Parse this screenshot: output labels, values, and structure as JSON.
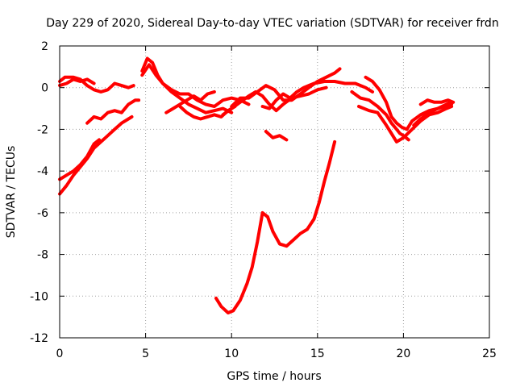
{
  "chart_data": {
    "type": "line",
    "title": "Day 229 of 2020, Sidereal Day-to-day VTEC variation (SDTVAR) for receiver frdn",
    "xlabel": "GPS time / hours",
    "ylabel": "SDTVAR / TECUs",
    "xlim": [
      0,
      25
    ],
    "ylim": [
      -12,
      2
    ],
    "xticks": [
      0,
      5,
      10,
      15,
      20,
      25
    ],
    "yticks": [
      -12,
      -10,
      -8,
      -6,
      -4,
      -2,
      0,
      2
    ],
    "xtick_labels": [
      "0",
      "5",
      "10",
      "15",
      "20",
      "25"
    ],
    "ytick_labels": [
      "-12",
      "-10",
      "-8",
      "-6",
      "-4",
      "-2",
      "0",
      "2"
    ],
    "grid": true,
    "color": "#ff0000",
    "series": [
      {
        "name": "satellite-track-1",
        "points": [
          [
            0.0,
            0.3
          ],
          [
            0.3,
            0.5
          ],
          [
            0.8,
            0.5
          ],
          [
            1.2,
            0.4
          ],
          [
            1.6,
            0.1
          ],
          [
            2.0,
            -0.1
          ],
          [
            2.4,
            -0.2
          ],
          [
            2.8,
            -0.1
          ],
          [
            3.2,
            0.2
          ],
          [
            3.6,
            0.1
          ],
          [
            4.0,
            0.0
          ],
          [
            4.3,
            0.1
          ]
        ]
      },
      {
        "name": "satellite-track-2",
        "points": [
          [
            0.0,
            0.1
          ],
          [
            0.4,
            0.2
          ],
          [
            0.8,
            0.4
          ],
          [
            1.2,
            0.3
          ],
          [
            1.6,
            0.4
          ],
          [
            2.0,
            0.2
          ]
        ]
      },
      {
        "name": "satellite-track-3",
        "points": [
          [
            1.6,
            -1.7
          ],
          [
            2.0,
            -1.4
          ],
          [
            2.4,
            -1.5
          ],
          [
            2.8,
            -1.2
          ],
          [
            3.2,
            -1.1
          ],
          [
            3.6,
            -1.2
          ],
          [
            4.0,
            -0.8
          ],
          [
            4.4,
            -0.6
          ],
          [
            4.6,
            -0.6
          ]
        ]
      },
      {
        "name": "satellite-track-4",
        "points": [
          [
            0.0,
            -5.1
          ],
          [
            0.4,
            -4.7
          ],
          [
            0.8,
            -4.2
          ],
          [
            1.2,
            -3.8
          ],
          [
            1.6,
            -3.4
          ],
          [
            2.0,
            -2.9
          ],
          [
            2.4,
            -2.6
          ],
          [
            2.8,
            -2.3
          ],
          [
            3.2,
            -2.0
          ],
          [
            3.6,
            -1.7
          ],
          [
            4.0,
            -1.5
          ],
          [
            4.2,
            -1.4
          ]
        ]
      },
      {
        "name": "satellite-track-5",
        "points": [
          [
            0.0,
            -4.4
          ],
          [
            0.4,
            -4.2
          ],
          [
            0.8,
            -4.0
          ],
          [
            1.2,
            -3.7
          ],
          [
            1.6,
            -3.3
          ],
          [
            2.0,
            -2.7
          ],
          [
            2.3,
            -2.5
          ]
        ]
      },
      {
        "name": "satellite-track-6",
        "points": [
          [
            4.8,
            0.8
          ],
          [
            5.1,
            1.4
          ],
          [
            5.4,
            1.2
          ],
          [
            5.7,
            0.6
          ],
          [
            6.0,
            0.2
          ],
          [
            6.5,
            -0.1
          ],
          [
            7.0,
            -0.3
          ],
          [
            7.5,
            -0.3
          ],
          [
            8.0,
            -0.6
          ],
          [
            8.5,
            -0.8
          ],
          [
            9.0,
            -0.9
          ],
          [
            9.5,
            -0.6
          ],
          [
            10.0,
            -0.5
          ],
          [
            10.5,
            -0.6
          ],
          [
            11.0,
            -0.8
          ]
        ]
      },
      {
        "name": "satellite-track-7",
        "points": [
          [
            4.8,
            0.6
          ],
          [
            5.2,
            1.1
          ],
          [
            5.6,
            0.6
          ],
          [
            6.0,
            0.2
          ],
          [
            6.5,
            -0.2
          ],
          [
            7.0,
            -0.5
          ],
          [
            7.5,
            -0.8
          ],
          [
            8.0,
            -1.0
          ],
          [
            8.5,
            -1.2
          ],
          [
            9.0,
            -1.1
          ],
          [
            9.5,
            -1.0
          ],
          [
            10.0,
            -1.2
          ]
        ]
      },
      {
        "name": "satellite-track-8",
        "points": [
          [
            6.2,
            -1.2
          ],
          [
            6.6,
            -1.0
          ],
          [
            7.0,
            -0.8
          ],
          [
            7.4,
            -0.6
          ],
          [
            7.8,
            -0.4
          ],
          [
            8.2,
            -0.6
          ],
          [
            8.6,
            -0.3
          ],
          [
            9.0,
            -0.2
          ]
        ]
      },
      {
        "name": "satellite-track-9",
        "points": [
          [
            7.0,
            -0.9
          ],
          [
            7.4,
            -1.2
          ],
          [
            7.8,
            -1.4
          ],
          [
            8.2,
            -1.5
          ],
          [
            8.6,
            -1.4
          ],
          [
            9.0,
            -1.3
          ],
          [
            9.4,
            -1.4
          ],
          [
            9.8,
            -1.1
          ],
          [
            10.2,
            -0.9
          ]
        ]
      },
      {
        "name": "satellite-track-10",
        "points": [
          [
            9.5,
            -1.3
          ],
          [
            10.0,
            -1.0
          ],
          [
            10.5,
            -0.7
          ],
          [
            11.0,
            -0.4
          ],
          [
            11.4,
            -0.2
          ],
          [
            11.8,
            -0.4
          ],
          [
            12.2,
            -0.8
          ],
          [
            12.6,
            -1.1
          ],
          [
            13.0,
            -0.8
          ],
          [
            13.5,
            -0.5
          ],
          [
            14.0,
            -0.4
          ],
          [
            14.5,
            -0.3
          ],
          [
            15.0,
            -0.1
          ],
          [
            15.5,
            0.0
          ]
        ]
      },
      {
        "name": "satellite-track-11",
        "points": [
          [
            10.0,
            -0.9
          ],
          [
            10.5,
            -0.5
          ],
          [
            11.0,
            -0.5
          ],
          [
            11.5,
            -0.2
          ],
          [
            12.0,
            0.1
          ],
          [
            12.5,
            -0.1
          ],
          [
            13.0,
            -0.6
          ],
          [
            13.5,
            -0.6
          ],
          [
            14.0,
            -0.3
          ],
          [
            14.5,
            0.0
          ],
          [
            15.0,
            0.3
          ],
          [
            15.5,
            0.5
          ],
          [
            16.0,
            0.7
          ],
          [
            16.3,
            0.9
          ]
        ]
      },
      {
        "name": "satellite-track-12",
        "points": [
          [
            11.8,
            -0.9
          ],
          [
            12.2,
            -1.0
          ],
          [
            12.6,
            -0.6
          ],
          [
            13.0,
            -0.3
          ],
          [
            13.4,
            -0.5
          ],
          [
            13.8,
            -0.2
          ],
          [
            14.2,
            0.0
          ],
          [
            14.8,
            0.2
          ],
          [
            15.4,
            0.3
          ],
          [
            16.0,
            0.3
          ],
          [
            16.6,
            0.2
          ],
          [
            17.2,
            0.2
          ],
          [
            17.8,
            0.0
          ],
          [
            18.2,
            -0.2
          ]
        ]
      },
      {
        "name": "satellite-track-13",
        "points": [
          [
            12.0,
            -2.1
          ],
          [
            12.4,
            -2.4
          ],
          [
            12.8,
            -2.3
          ],
          [
            13.2,
            -2.5
          ]
        ]
      },
      {
        "name": "satellite-track-14",
        "points": [
          [
            9.1,
            -10.1
          ],
          [
            9.4,
            -10.5
          ],
          [
            9.8,
            -10.8
          ],
          [
            10.1,
            -10.7
          ],
          [
            10.5,
            -10.2
          ],
          [
            10.9,
            -9.4
          ],
          [
            11.2,
            -8.6
          ],
          [
            11.5,
            -7.4
          ],
          [
            11.8,
            -6.0
          ],
          [
            12.1,
            -6.2
          ],
          [
            12.4,
            -6.9
          ],
          [
            12.8,
            -7.5
          ],
          [
            13.2,
            -7.6
          ],
          [
            13.6,
            -7.3
          ],
          [
            14.0,
            -7.0
          ],
          [
            14.4,
            -6.8
          ],
          [
            14.8,
            -6.3
          ],
          [
            15.1,
            -5.5
          ],
          [
            15.4,
            -4.5
          ],
          [
            15.7,
            -3.6
          ],
          [
            16.0,
            -2.6
          ]
        ]
      },
      {
        "name": "satellite-track-15",
        "points": [
          [
            17.0,
            -0.2
          ],
          [
            17.5,
            -0.5
          ],
          [
            18.0,
            -0.6
          ],
          [
            18.5,
            -0.9
          ],
          [
            19.0,
            -1.3
          ],
          [
            19.3,
            -1.7
          ],
          [
            19.6,
            -2.0
          ],
          [
            19.8,
            -2.2
          ],
          [
            20.0,
            -2.3
          ],
          [
            20.3,
            -2.5
          ]
        ]
      },
      {
        "name": "satellite-track-16",
        "points": [
          [
            17.4,
            -0.9
          ],
          [
            18.0,
            -1.1
          ],
          [
            18.5,
            -1.2
          ],
          [
            19.0,
            -1.8
          ],
          [
            19.3,
            -2.2
          ],
          [
            19.6,
            -2.6
          ],
          [
            20.0,
            -2.4
          ],
          [
            20.5,
            -2.0
          ],
          [
            21.0,
            -1.6
          ],
          [
            21.5,
            -1.3
          ],
          [
            22.0,
            -1.2
          ],
          [
            22.5,
            -1.0
          ],
          [
            22.8,
            -0.9
          ]
        ]
      },
      {
        "name": "satellite-track-17",
        "points": [
          [
            17.8,
            0.5
          ],
          [
            18.2,
            0.3
          ],
          [
            18.6,
            -0.1
          ],
          [
            19.0,
            -0.7
          ],
          [
            19.3,
            -1.4
          ],
          [
            19.6,
            -1.7
          ],
          [
            19.9,
            -1.9
          ],
          [
            20.2,
            -2.0
          ],
          [
            20.5,
            -1.6
          ],
          [
            21.0,
            -1.3
          ],
          [
            21.5,
            -1.1
          ],
          [
            22.0,
            -1.0
          ],
          [
            22.5,
            -0.8
          ],
          [
            22.8,
            -0.7
          ]
        ]
      },
      {
        "name": "satellite-track-18",
        "points": [
          [
            20.6,
            -1.8
          ],
          [
            21.0,
            -1.5
          ],
          [
            21.5,
            -1.2
          ],
          [
            22.0,
            -1.0
          ],
          [
            22.4,
            -0.9
          ],
          [
            22.8,
            -0.8
          ]
        ]
      },
      {
        "name": "satellite-track-19",
        "points": [
          [
            21.0,
            -0.8
          ],
          [
            21.4,
            -0.6
          ],
          [
            21.8,
            -0.7
          ],
          [
            22.2,
            -0.7
          ],
          [
            22.6,
            -0.6
          ],
          [
            22.9,
            -0.7
          ]
        ]
      }
    ]
  }
}
